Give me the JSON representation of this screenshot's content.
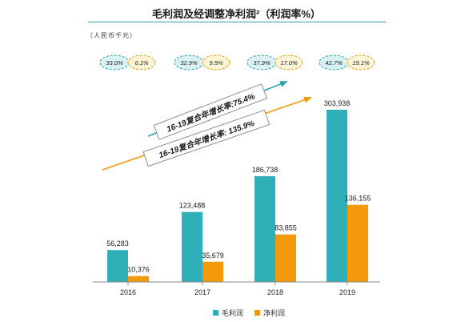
{
  "title": "毛利润及经调整净利润²（利润率%）",
  "unit_label": "（人民币千元）",
  "colors": {
    "gross": "#2fb0b8",
    "net": "#f29a0b",
    "teal_arrow": "#2aa3b0",
    "orange_arrow": "#f29a0b"
  },
  "margins": [
    {
      "year": "2016",
      "gross_margin": "33.0%",
      "net_margin": "6.1%"
    },
    {
      "year": "2017",
      "gross_margin": "32.9%",
      "net_margin": "9.5%"
    },
    {
      "year": "2018",
      "gross_margin": "37.9%",
      "net_margin": "17.0%"
    },
    {
      "year": "2019",
      "gross_margin": "42.7%",
      "net_margin": "19.1%"
    }
  ],
  "cagr": {
    "gross": "16-19复合年增长率:75.4%",
    "net": "16-19复合年增长率: 135.9%"
  },
  "chart_data": {
    "type": "bar",
    "categories": [
      "2016",
      "2017",
      "2018",
      "2019"
    ],
    "series": [
      {
        "name": "毛利润",
        "values": [
          56283,
          123488,
          186738,
          303938
        ],
        "labels": [
          "56,283",
          "123,488",
          "186,738",
          "303,938"
        ]
      },
      {
        "name": "净利润",
        "values": [
          10376,
          35679,
          83855,
          136155
        ],
        "labels": [
          "10,376",
          "35,679",
          "83,855",
          "136,155"
        ]
      }
    ],
    "title": "毛利润及经调整净利润²（利润率%）",
    "ylim": [
      0,
      303938
    ],
    "grid": false,
    "legend": "bottom-center"
  }
}
